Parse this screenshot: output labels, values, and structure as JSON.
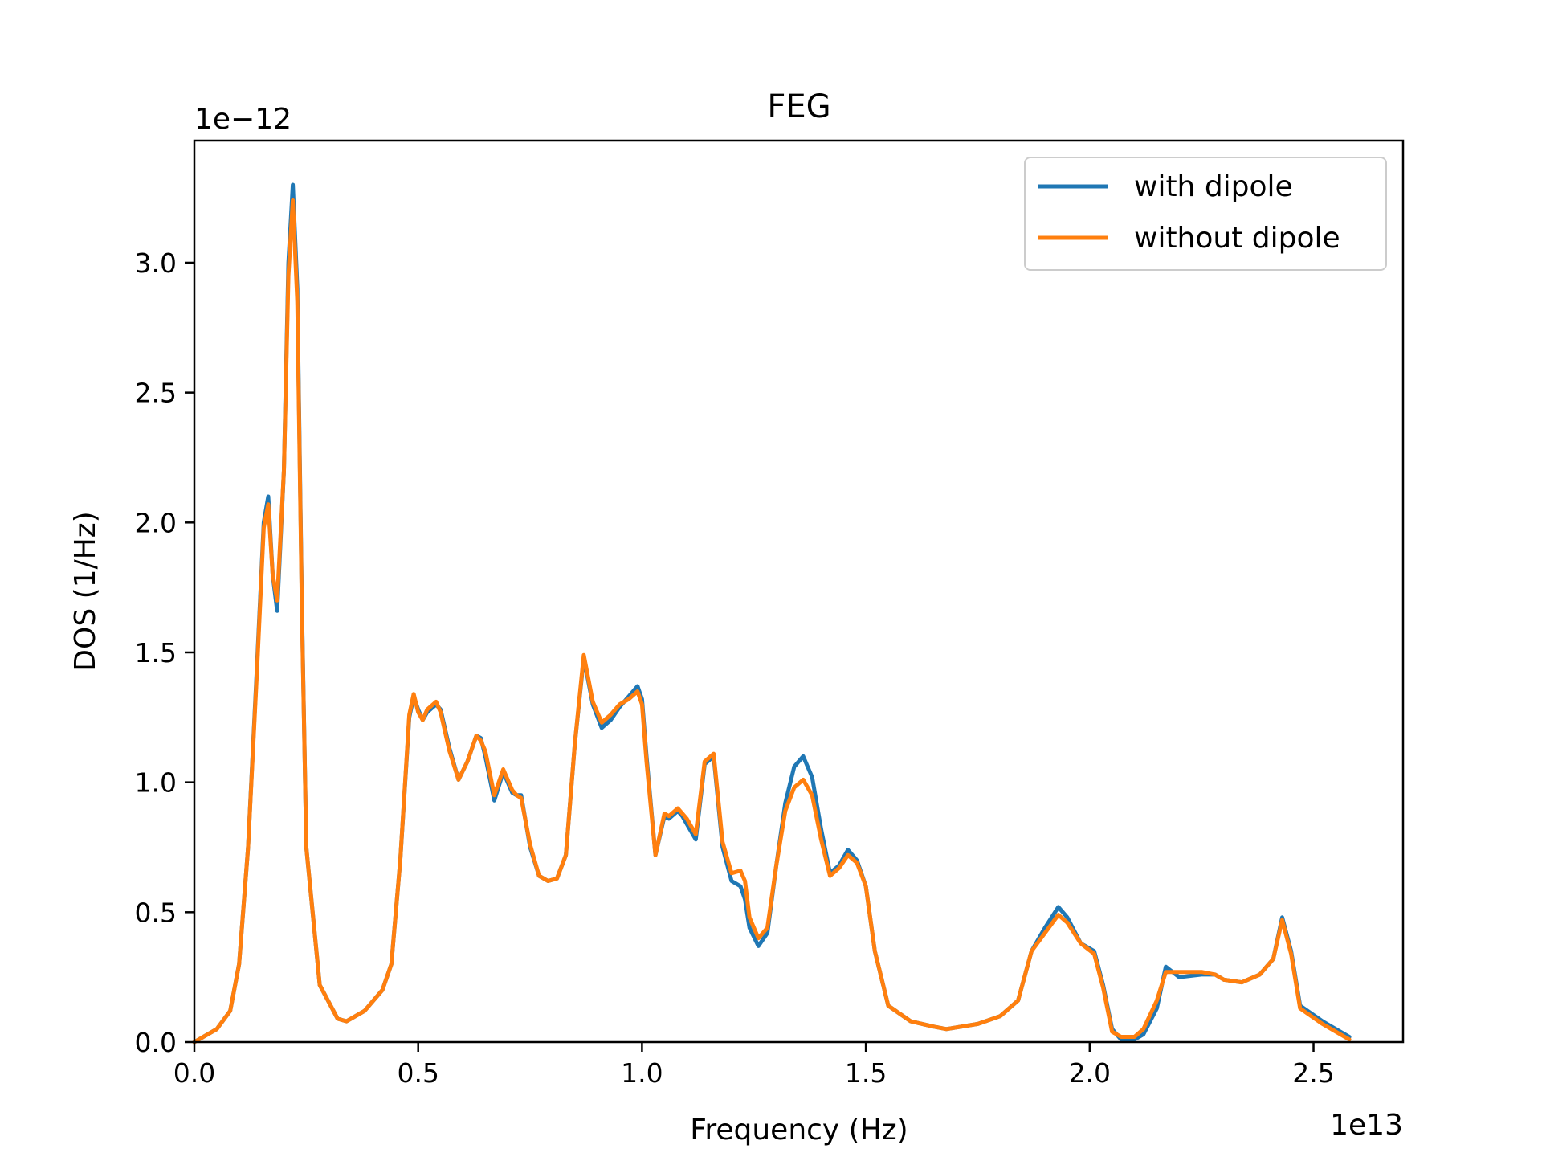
{
  "chart_data": {
    "type": "line",
    "title": "FEG",
    "xlabel": "Frequency (Hz)",
    "ylabel": "DOS (1/Hz)",
    "x_offset_label": "1e13",
    "y_offset_label": "1e−12",
    "xlim": [
      0.0,
      2.7
    ],
    "ylim": [
      0.0,
      3.47
    ],
    "x_ticks": [
      0.0,
      0.5,
      1.0,
      1.5,
      2.0,
      2.5
    ],
    "x_tick_labels": [
      "0.0",
      "0.5",
      "1.0",
      "1.5",
      "2.0",
      "2.5"
    ],
    "y_ticks": [
      0.0,
      0.5,
      1.0,
      1.5,
      2.0,
      2.5,
      3.0
    ],
    "y_tick_labels": [
      "0.0",
      "0.5",
      "1.0",
      "1.5",
      "2.0",
      "2.5",
      "3.0"
    ],
    "grid": false,
    "legend_position": "top-right",
    "series": [
      {
        "name": "with dipole",
        "color": "#1f77b4",
        "x": [
          0.0,
          0.05,
          0.08,
          0.1,
          0.12,
          0.14,
          0.155,
          0.165,
          0.175,
          0.185,
          0.2,
          0.21,
          0.22,
          0.23,
          0.24,
          0.25,
          0.28,
          0.32,
          0.34,
          0.38,
          0.42,
          0.44,
          0.46,
          0.48,
          0.49,
          0.5,
          0.51,
          0.52,
          0.54,
          0.55,
          0.57,
          0.59,
          0.61,
          0.63,
          0.64,
          0.65,
          0.67,
          0.69,
          0.71,
          0.72,
          0.73,
          0.75,
          0.77,
          0.79,
          0.81,
          0.83,
          0.85,
          0.87,
          0.89,
          0.91,
          0.93,
          0.95,
          0.97,
          0.99,
          1.0,
          1.01,
          1.03,
          1.05,
          1.06,
          1.08,
          1.09,
          1.1,
          1.12,
          1.14,
          1.16,
          1.18,
          1.2,
          1.22,
          1.23,
          1.24,
          1.26,
          1.28,
          1.3,
          1.32,
          1.34,
          1.36,
          1.38,
          1.4,
          1.42,
          1.44,
          1.46,
          1.48,
          1.5,
          1.52,
          1.55,
          1.6,
          1.65,
          1.68,
          1.75,
          1.8,
          1.84,
          1.87,
          1.9,
          1.93,
          1.95,
          1.98,
          2.01,
          2.03,
          2.05,
          2.07,
          2.1,
          2.12,
          2.15,
          2.17,
          2.2,
          2.25,
          2.28,
          2.3,
          2.34,
          2.38,
          2.41,
          2.43,
          2.45,
          2.47,
          2.52,
          2.58
        ],
        "y": [
          0.0,
          0.05,
          0.12,
          0.3,
          0.75,
          1.45,
          2.0,
          2.1,
          1.8,
          1.66,
          2.2,
          3.0,
          3.3,
          2.9,
          1.7,
          0.75,
          0.22,
          0.09,
          0.08,
          0.12,
          0.2,
          0.3,
          0.7,
          1.25,
          1.33,
          1.28,
          1.24,
          1.27,
          1.3,
          1.28,
          1.13,
          1.01,
          1.08,
          1.18,
          1.17,
          1.1,
          0.93,
          1.04,
          0.96,
          0.95,
          0.95,
          0.75,
          0.64,
          0.62,
          0.63,
          0.72,
          1.15,
          1.48,
          1.3,
          1.21,
          1.24,
          1.29,
          1.33,
          1.37,
          1.32,
          1.1,
          0.72,
          0.87,
          0.86,
          0.89,
          0.87,
          0.84,
          0.78,
          1.07,
          1.1,
          0.75,
          0.62,
          0.6,
          0.55,
          0.44,
          0.37,
          0.42,
          0.68,
          0.92,
          1.06,
          1.1,
          1.02,
          0.82,
          0.65,
          0.68,
          0.74,
          0.7,
          0.6,
          0.35,
          0.14,
          0.08,
          0.06,
          0.05,
          0.07,
          0.1,
          0.16,
          0.35,
          0.44,
          0.52,
          0.48,
          0.38,
          0.35,
          0.22,
          0.05,
          0.01,
          0.01,
          0.03,
          0.13,
          0.29,
          0.25,
          0.26,
          0.26,
          0.24,
          0.23,
          0.26,
          0.32,
          0.48,
          0.35,
          0.14,
          0.08,
          0.02
        ]
      },
      {
        "name": "without dipole",
        "color": "#ff7f0e",
        "x": [
          0.0,
          0.05,
          0.08,
          0.1,
          0.12,
          0.14,
          0.155,
          0.165,
          0.175,
          0.185,
          0.2,
          0.21,
          0.22,
          0.23,
          0.24,
          0.25,
          0.28,
          0.32,
          0.34,
          0.38,
          0.42,
          0.44,
          0.46,
          0.48,
          0.49,
          0.5,
          0.51,
          0.52,
          0.54,
          0.55,
          0.57,
          0.59,
          0.61,
          0.63,
          0.64,
          0.65,
          0.67,
          0.69,
          0.71,
          0.72,
          0.73,
          0.75,
          0.77,
          0.79,
          0.81,
          0.83,
          0.85,
          0.87,
          0.89,
          0.91,
          0.93,
          0.95,
          0.97,
          0.99,
          1.0,
          1.01,
          1.03,
          1.05,
          1.06,
          1.08,
          1.09,
          1.1,
          1.12,
          1.14,
          1.16,
          1.18,
          1.2,
          1.22,
          1.23,
          1.24,
          1.26,
          1.28,
          1.3,
          1.32,
          1.34,
          1.36,
          1.38,
          1.4,
          1.42,
          1.44,
          1.46,
          1.48,
          1.5,
          1.52,
          1.55,
          1.6,
          1.65,
          1.68,
          1.75,
          1.8,
          1.84,
          1.87,
          1.9,
          1.93,
          1.95,
          1.98,
          2.01,
          2.03,
          2.05,
          2.07,
          2.1,
          2.12,
          2.15,
          2.17,
          2.2,
          2.25,
          2.28,
          2.3,
          2.34,
          2.38,
          2.41,
          2.43,
          2.45,
          2.47,
          2.52,
          2.58
        ],
        "y": [
          0.0,
          0.05,
          0.12,
          0.3,
          0.75,
          1.43,
          1.98,
          2.07,
          1.8,
          1.7,
          2.2,
          2.95,
          3.24,
          2.85,
          1.68,
          0.75,
          0.22,
          0.09,
          0.08,
          0.12,
          0.2,
          0.3,
          0.7,
          1.26,
          1.34,
          1.27,
          1.24,
          1.28,
          1.31,
          1.27,
          1.12,
          1.01,
          1.08,
          1.18,
          1.16,
          1.12,
          0.95,
          1.05,
          0.97,
          0.95,
          0.94,
          0.76,
          0.64,
          0.62,
          0.63,
          0.72,
          1.15,
          1.49,
          1.31,
          1.23,
          1.26,
          1.3,
          1.32,
          1.35,
          1.3,
          1.08,
          0.72,
          0.88,
          0.87,
          0.9,
          0.88,
          0.86,
          0.8,
          1.08,
          1.11,
          0.77,
          0.65,
          0.66,
          0.62,
          0.48,
          0.4,
          0.44,
          0.68,
          0.89,
          0.98,
          1.01,
          0.95,
          0.78,
          0.64,
          0.67,
          0.72,
          0.69,
          0.6,
          0.35,
          0.14,
          0.08,
          0.06,
          0.05,
          0.07,
          0.1,
          0.16,
          0.35,
          0.42,
          0.49,
          0.46,
          0.38,
          0.34,
          0.21,
          0.04,
          0.02,
          0.02,
          0.05,
          0.16,
          0.27,
          0.27,
          0.27,
          0.26,
          0.24,
          0.23,
          0.26,
          0.32,
          0.47,
          0.34,
          0.13,
          0.07,
          0.01
        ]
      }
    ]
  }
}
